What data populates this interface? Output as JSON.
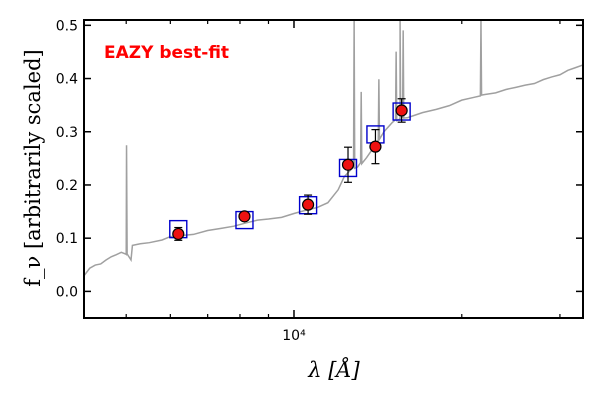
{
  "chart_data": {
    "type": "scatter",
    "title": "",
    "xlabel": "λ [Å]",
    "ylabel": "f_ν [arbitrarily scaled]",
    "xscale": "log",
    "xlim": [
      4200,
      33000
    ],
    "ylim": [
      -0.05,
      0.51
    ],
    "grid": false,
    "x_ticks": [
      {
        "value": 10000,
        "label": "10⁴"
      }
    ],
    "x_minor_ticks": [
      5000,
      6000,
      7000,
      8000,
      9000,
      20000,
      30000
    ],
    "y_ticks": [
      0.0,
      0.1,
      0.2,
      0.3,
      0.4,
      0.5
    ],
    "y_tick_labels": [
      "0.0",
      "0.1",
      "0.2",
      "0.3",
      "0.4",
      "0.5"
    ],
    "annotation": "EAZY best-fit",
    "colors": {
      "sed_line": "#a0a0a0",
      "model_box": "#0000cc",
      "observed_fill": "#ee1111",
      "observed_edge": "#000000"
    },
    "observed": [
      {
        "x": 6200,
        "y": 0.108,
        "err": 0.012
      },
      {
        "x": 8150,
        "y": 0.141,
        "err": 0.006
      },
      {
        "x": 10600,
        "y": 0.163,
        "err": 0.018
      },
      {
        "x": 12500,
        "y": 0.238,
        "err": 0.033
      },
      {
        "x": 14000,
        "y": 0.272,
        "err": 0.032
      },
      {
        "x": 15600,
        "y": 0.34,
        "err": 0.022
      }
    ],
    "model_photometry": [
      {
        "x": 6200,
        "y": 0.117
      },
      {
        "x": 8150,
        "y": 0.134
      },
      {
        "x": 10600,
        "y": 0.162
      },
      {
        "x": 12500,
        "y": 0.232
      },
      {
        "x": 14000,
        "y": 0.295
      },
      {
        "x": 15600,
        "y": 0.338
      }
    ],
    "sed_curve": [
      [
        4200,
        0.028
      ],
      [
        4300,
        0.043
      ],
      [
        4400,
        0.05
      ],
      [
        4500,
        0.053
      ],
      [
        4600,
        0.058
      ],
      [
        4700,
        0.065
      ],
      [
        4800,
        0.07
      ],
      [
        4900,
        0.072
      ],
      [
        5000,
        0.07
      ],
      [
        5050,
        0.066
      ],
      [
        5100,
        0.06
      ],
      [
        5130,
        0.085
      ],
      [
        5300,
        0.089
      ],
      [
        5500,
        0.092
      ],
      [
        5800,
        0.098
      ],
      [
        6000,
        0.102
      ],
      [
        6300,
        0.105
      ],
      [
        6600,
        0.108
      ],
      [
        7000,
        0.113
      ],
      [
        7400,
        0.118
      ],
      [
        7800,
        0.123
      ],
      [
        8200,
        0.13
      ],
      [
        8600,
        0.133
      ],
      [
        9000,
        0.136
      ],
      [
        9500,
        0.14
      ],
      [
        10000,
        0.145
      ],
      [
        10500,
        0.152
      ],
      [
        11000,
        0.158
      ],
      [
        11500,
        0.168
      ],
      [
        12000,
        0.19
      ],
      [
        12300,
        0.215
      ],
      [
        12600,
        0.228
      ],
      [
        13000,
        0.235
      ],
      [
        13500,
        0.25
      ],
      [
        14000,
        0.275
      ],
      [
        14500,
        0.3
      ],
      [
        15000,
        0.318
      ],
      [
        15500,
        0.325
      ],
      [
        16000,
        0.328
      ],
      [
        17000,
        0.335
      ],
      [
        18000,
        0.342
      ],
      [
        19000,
        0.35
      ],
      [
        20000,
        0.358
      ],
      [
        21000,
        0.364
      ],
      [
        22000,
        0.37
      ],
      [
        23000,
        0.374
      ],
      [
        24000,
        0.378
      ],
      [
        25000,
        0.383
      ],
      [
        26000,
        0.388
      ],
      [
        27000,
        0.392
      ],
      [
        28000,
        0.397
      ],
      [
        29000,
        0.403
      ],
      [
        30000,
        0.408
      ],
      [
        31000,
        0.414
      ],
      [
        32000,
        0.42
      ],
      [
        33000,
        0.426
      ]
    ],
    "emission_lines": [
      {
        "x": 5007,
        "peak": 0.276
      },
      {
        "x": 12820,
        "peak": 0.51
      },
      {
        "x": 13200,
        "peak": 0.375
      },
      {
        "x": 14200,
        "peak": 0.4
      },
      {
        "x": 15250,
        "peak": 0.45
      },
      {
        "x": 15500,
        "peak": 0.51
      },
      {
        "x": 15700,
        "peak": 0.49
      },
      {
        "x": 21650,
        "peak": 0.51
      }
    ]
  }
}
